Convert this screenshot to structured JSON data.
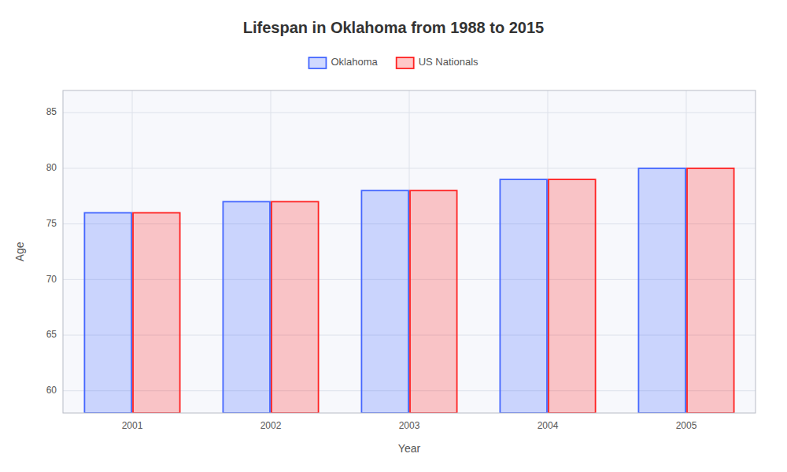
{
  "chart_data": {
    "type": "bar",
    "title": "Lifespan in Oklahoma from 1988 to 2015",
    "x_label": "Year",
    "y_label": "Age",
    "categories": [
      "2001",
      "2002",
      "2003",
      "2004",
      "2005"
    ],
    "series": [
      {
        "name": "Oklahoma",
        "color": "#4466ff",
        "values": [
          76,
          77,
          78,
          79,
          80
        ]
      },
      {
        "name": "US Nationals",
        "color": "#ff2222",
        "values": [
          76,
          77,
          78,
          79,
          80
        ]
      }
    ],
    "ylim": [
      58,
      87
    ],
    "yticks": [
      60,
      65,
      70,
      75,
      80,
      85
    ],
    "grid": true,
    "legend": "top"
  }
}
